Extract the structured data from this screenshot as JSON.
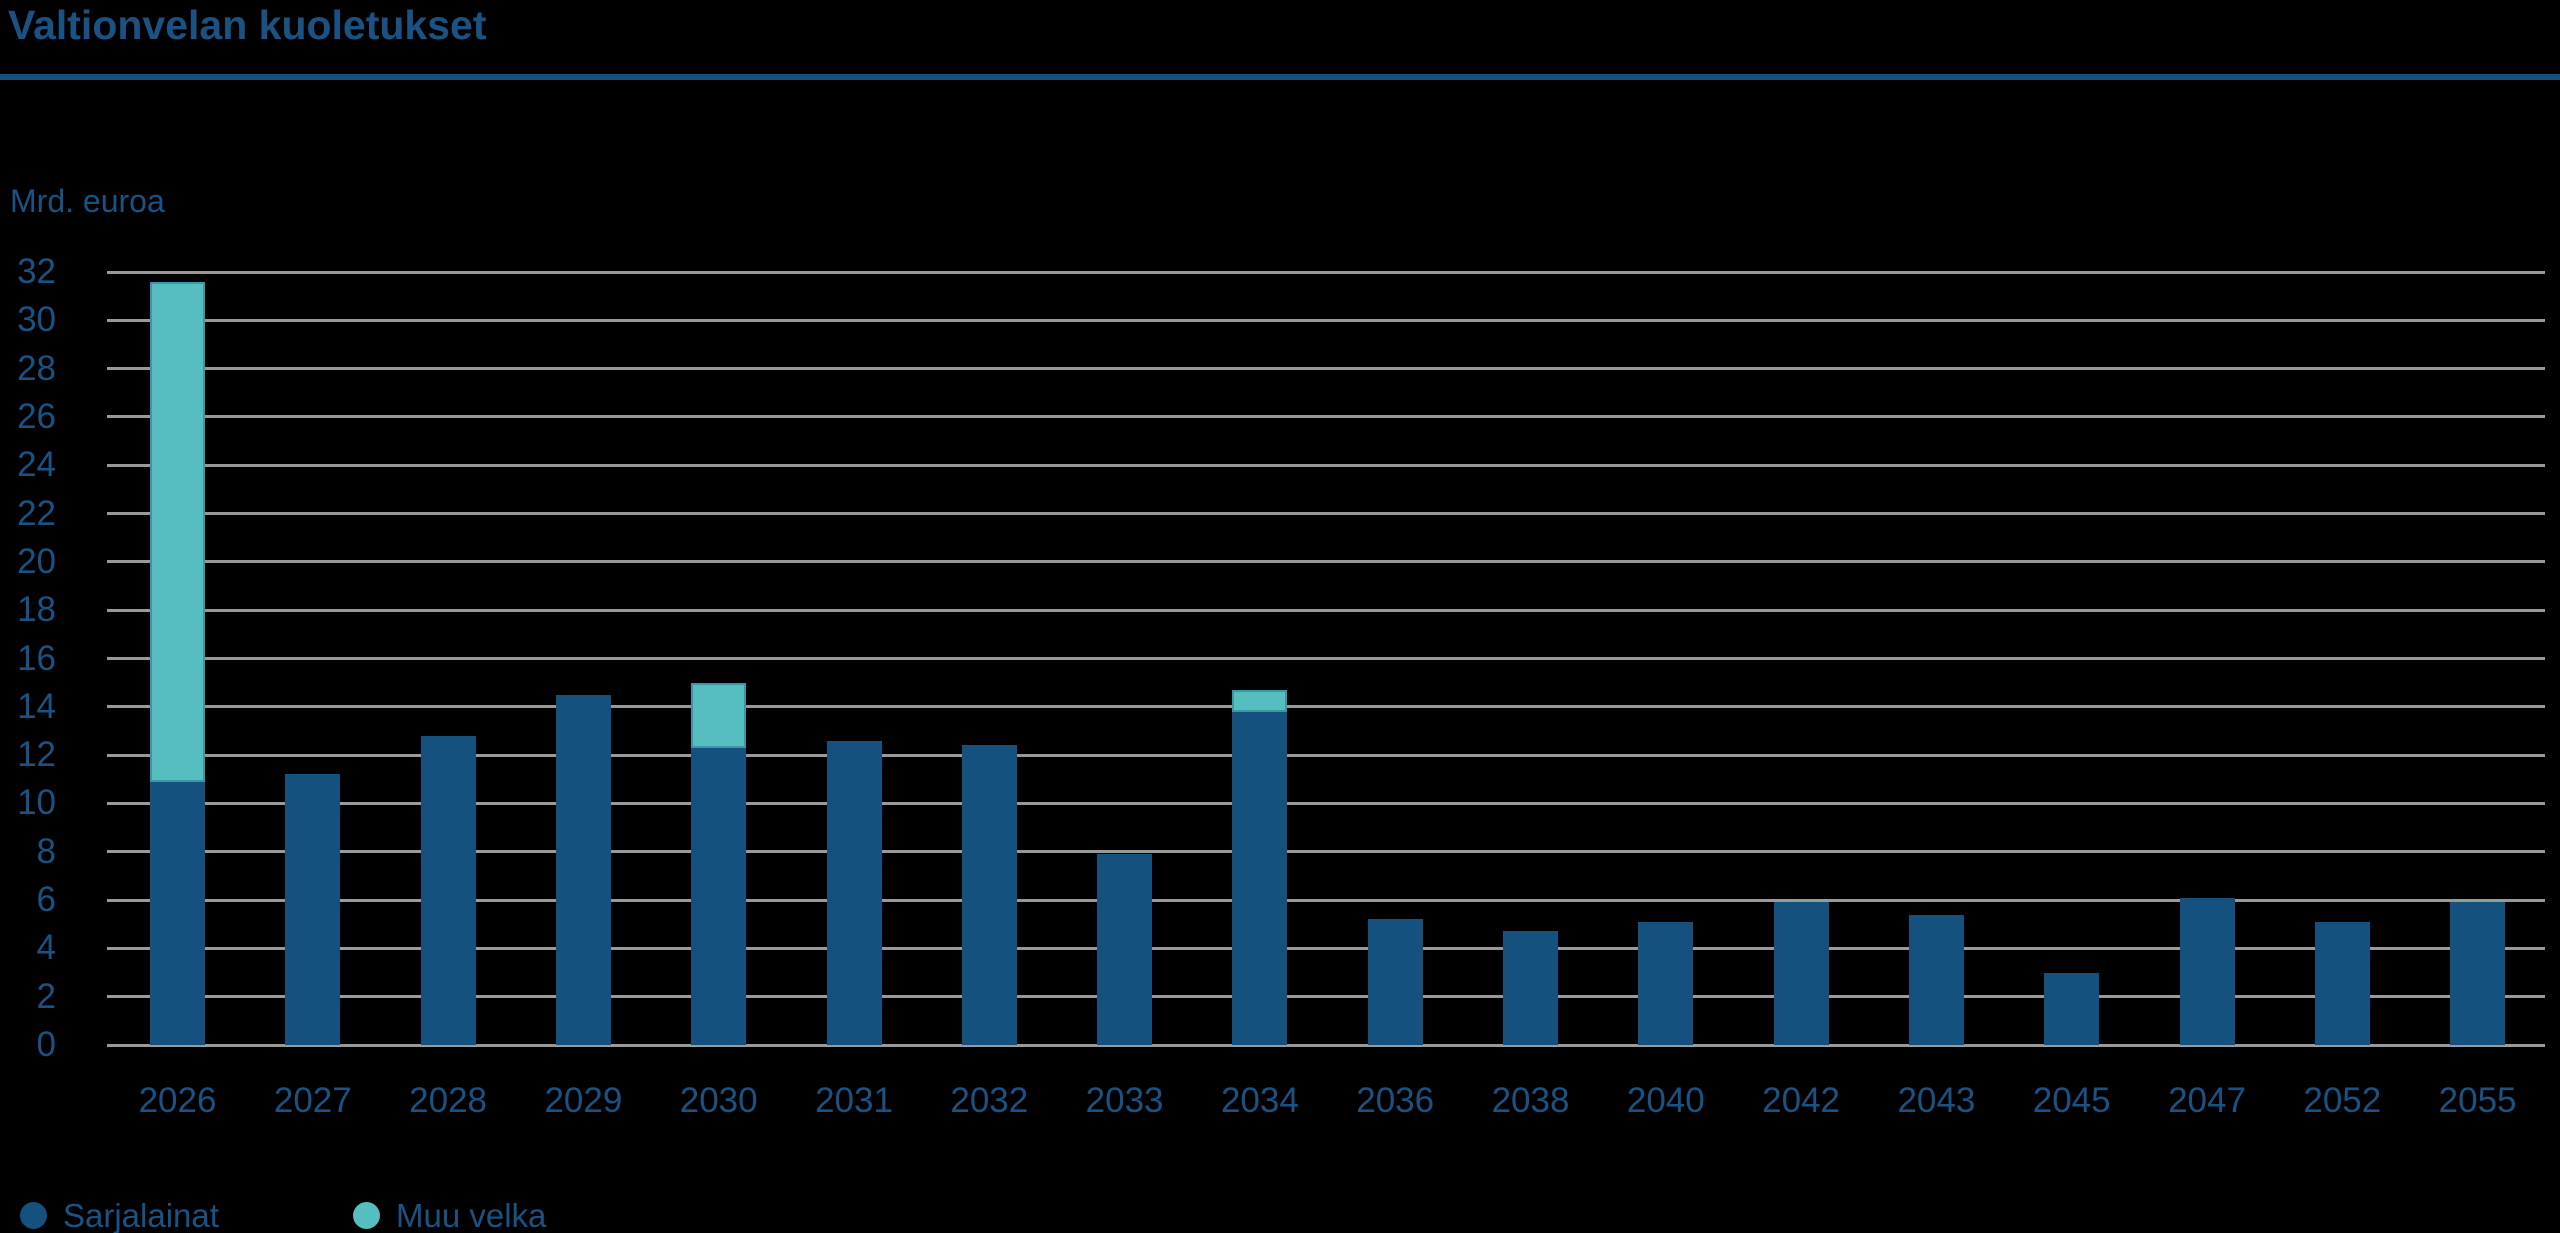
{
  "title": "Valtionvelan kuoletukset",
  "y_axis_unit_label": "Mrd. euroa",
  "legend": [
    {
      "label": "Sarjalainat",
      "color": "#15517E"
    },
    {
      "label": "Muu velka",
      "color": "#56BEC0"
    }
  ],
  "colors": {
    "background": "#000000",
    "bar_blue": "#15517E",
    "bar_teal": "#56BEC0",
    "text_blue": "#1A5383",
    "gridline": "#999999",
    "title_rule": "#14517E"
  },
  "chart_data": {
    "type": "bar",
    "stacked": true,
    "title": "Valtionvelan kuoletukset",
    "ylabel": "Mrd. euroa",
    "xlabel": "",
    "ylim": [
      0,
      32
    ],
    "ytick_step": 2,
    "grid": true,
    "legend_position": "bottom-left",
    "categories": [
      "2026",
      "2027",
      "2028",
      "2029",
      "2030",
      "2031",
      "2032",
      "2033",
      "2034",
      "2036",
      "2038",
      "2040",
      "2042",
      "2043",
      "2045",
      "2047",
      "2052",
      "2055"
    ],
    "series": [
      {
        "name": "Sarjalainat",
        "color": "#15517E",
        "values": [
          10.9,
          11.2,
          12.8,
          14.5,
          12.3,
          12.6,
          12.4,
          7.9,
          13.8,
          5.2,
          4.7,
          5.1,
          5.9,
          5.4,
          3.0,
          6.1,
          5.1,
          5.9
        ]
      },
      {
        "name": "Muu velka",
        "color": "#56BEC0",
        "values": [
          20.7,
          0,
          0,
          0,
          2.7,
          0,
          0,
          0,
          0.9,
          0,
          0,
          0,
          0,
          0,
          0,
          0,
          0,
          0
        ]
      }
    ]
  }
}
